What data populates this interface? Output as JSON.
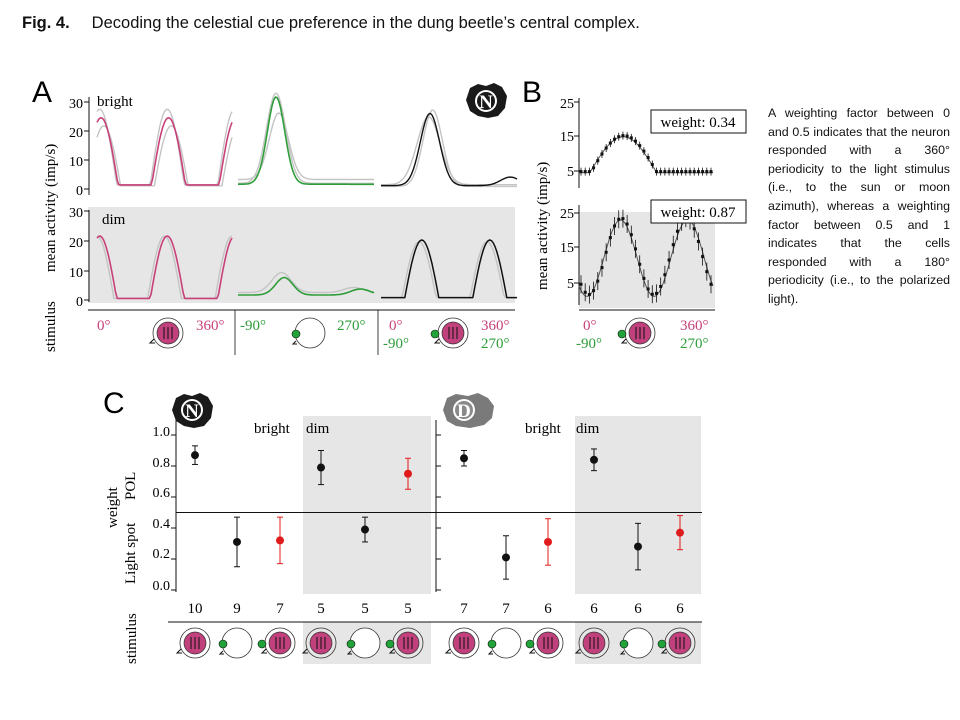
{
  "figure": {
    "label": "Fig. 4.",
    "caption": "Decoding the celestial cue preference in the dung beetle’s central complex.",
    "side_note": "A weighting factor between 0 and 0.5 indicates that the neuron responded with a 360° periodicity to the light stimulus (i.e., to the sun or moon azimuth), whereas a weighting factor between 0.5 and 1 indicates that the cells responded with a 180° periodicity (i.e., to the polarized light)."
  },
  "colors": {
    "magenta": "#c8417a",
    "green": "#2f9e3a",
    "red": "#e01b1b",
    "black": "#111111",
    "gray_trace": "#c4c4c4",
    "dim_bg": "#e6e6e6",
    "stim_fill": "#c0417c",
    "stim_green": "#22a33a"
  },
  "panel_a": {
    "letter": "A",
    "ylabel": "mean activity (imp/s)",
    "stimulus_label": "stimulus",
    "bright_label": "bright",
    "dim_label": "dim",
    "bright_yticks": [
      "30",
      "20",
      "10",
      "0"
    ],
    "dim_yticks": [
      "30",
      "20",
      "10",
      "0"
    ],
    "col1_axis": [
      "0°",
      "360°"
    ],
    "col2_axis": [
      "-90°",
      "270°"
    ],
    "col3_axis_top": [
      "0°",
      "360°"
    ],
    "col3_axis_bottom": [
      "-90°",
      "270°"
    ],
    "badge": "N",
    "stimulus_icons": [
      "polarizer-icon",
      "light-spot-icon",
      "polarizer-light-spot-icon"
    ]
  },
  "panel_b": {
    "letter": "B",
    "ylabel": "mean activity (imp/s)",
    "top_yticks": [
      "25",
      "15",
      "5"
    ],
    "bottom_yticks": [
      "25",
      "15",
      "5"
    ],
    "weight_top": "weight: 0.34",
    "weight_bottom": "weight: 0.87",
    "axis_top": [
      "0°",
      "360°"
    ],
    "axis_bottom": [
      "-90°",
      "270°"
    ]
  },
  "panel_c": {
    "letter": "C",
    "ylabel": "weight",
    "pol_label": "POL",
    "light_label": "Light spot",
    "stimulus_label": "stimulus",
    "yticks": [
      "1.0",
      "0.8",
      "0.6",
      "0.4",
      "0.2",
      "0.0"
    ],
    "bright_label": "bright",
    "dim_label": "dim",
    "badge_left": "N",
    "badge_right": "D"
  },
  "chart_data": [
    {
      "type": "scatter",
      "panel": "C-left (N)",
      "ylabel": "weight",
      "ylim": [
        0.0,
        1.0
      ],
      "categories": [
        "10",
        "9",
        "7",
        "5",
        "5",
        "5"
      ],
      "conditions": [
        "bright",
        "bright",
        "bright",
        "dim",
        "dim",
        "dim"
      ],
      "values": [
        0.87,
        0.31,
        0.32,
        0.79,
        0.39,
        0.75
      ],
      "errors": [
        0.06,
        0.16,
        0.15,
        0.11,
        0.08,
        0.1
      ],
      "point_colors": [
        "#111111",
        "#111111",
        "#e01b1b",
        "#111111",
        "#111111",
        "#e01b1b"
      ],
      "threshold": 0.5
    },
    {
      "type": "scatter",
      "panel": "C-right (D)",
      "ylabel": "weight",
      "ylim": [
        0.0,
        1.0
      ],
      "categories": [
        "7",
        "7",
        "6",
        "6",
        "6",
        "6"
      ],
      "conditions": [
        "bright",
        "bright",
        "bright",
        "dim",
        "dim",
        "dim"
      ],
      "values": [
        0.85,
        0.21,
        0.31,
        0.84,
        0.28,
        0.37
      ],
      "errors": [
        0.05,
        0.14,
        0.15,
        0.07,
        0.15,
        0.11
      ],
      "point_colors": [
        "#111111",
        "#111111",
        "#e01b1b",
        "#111111",
        "#111111",
        "#e01b1b"
      ],
      "threshold": 0.5
    }
  ]
}
